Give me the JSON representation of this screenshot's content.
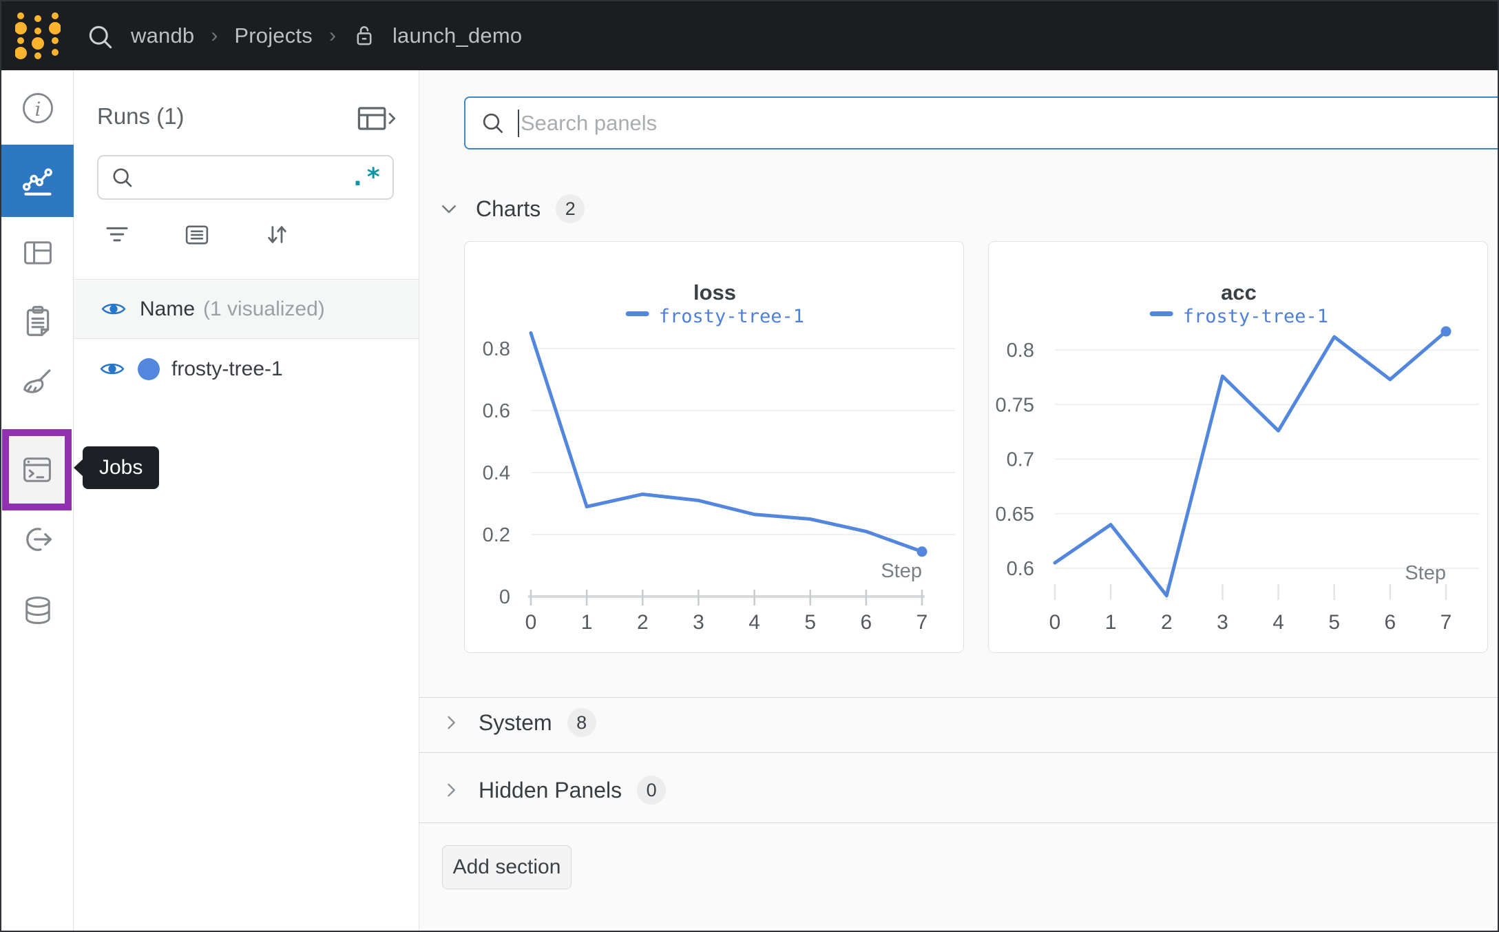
{
  "colors": {
    "topbar_bg": "#1b1d21",
    "logo_gold": "#fcb42e",
    "accent_blue": "#2e78c2",
    "run_blue": "#5387dd",
    "annotation_purple": "#9130b0",
    "regex_teal": "#1196a7",
    "search_focus_border": "#4285c4"
  },
  "topbar": {
    "breadcrumb": {
      "part1": "wandb",
      "sep1": "›",
      "part2": "Projects",
      "sep2": "›",
      "part3": "launch_demo"
    }
  },
  "sidebar": {
    "jobs_tooltip": "Jobs",
    "items": [
      "overview",
      "workspace-charts",
      "table",
      "logs",
      "sweeps-broom",
      "jobs",
      "automations-link",
      "artifacts-database"
    ]
  },
  "runs_panel": {
    "title": "Runs (1)",
    "search_value": "",
    "regex_icon": ".*",
    "header_name": "Name",
    "header_visualized": "(1 visualized)",
    "run_name": "frosty-tree-1"
  },
  "main": {
    "search_placeholder": "Search panels",
    "charts_label": "Charts",
    "charts_count": "2",
    "system_label": "System",
    "system_count": "8",
    "hidden_label": "Hidden Panels",
    "hidden_count": "0",
    "add_section_label": "Add section"
  },
  "chart_data": [
    {
      "type": "line",
      "title": "loss",
      "xlabel": "Step",
      "x": [
        0,
        1,
        2,
        3,
        4,
        5,
        6,
        7
      ],
      "series": [
        {
          "name": "frosty-tree-1",
          "color": "#5387dd",
          "values": [
            0.85,
            0.29,
            0.33,
            0.31,
            0.265,
            0.25,
            0.21,
            0.145
          ]
        }
      ],
      "yticks": [
        0,
        0.2,
        0.4,
        0.6,
        0.8
      ],
      "xticks": [
        0,
        1,
        2,
        3,
        4,
        5,
        6,
        7
      ],
      "ylim": [
        -0.011,
        0.922
      ],
      "xlim": [
        0,
        7
      ],
      "grid": true,
      "axis_line": true,
      "end_dot": true,
      "legend_position": "top-center"
    },
    {
      "type": "line",
      "title": "acc",
      "xlabel": "Step",
      "x": [
        0,
        1,
        2,
        3,
        4,
        5,
        6,
        7
      ],
      "series": [
        {
          "name": "frosty-tree-1",
          "color": "#5387dd",
          "values": [
            0.605,
            0.64,
            0.575,
            0.776,
            0.726,
            0.812,
            0.773,
            0.817
          ]
        }
      ],
      "yticks": [
        0.6,
        0.65,
        0.7,
        0.75,
        0.8
      ],
      "xticks": [
        0,
        1,
        2,
        3,
        4,
        5,
        6,
        7
      ],
      "ylim": [
        0.571,
        0.836
      ],
      "xlim": [
        0,
        7
      ],
      "grid": true,
      "axis_line": false,
      "end_dot": true,
      "legend_position": "top-center"
    }
  ]
}
